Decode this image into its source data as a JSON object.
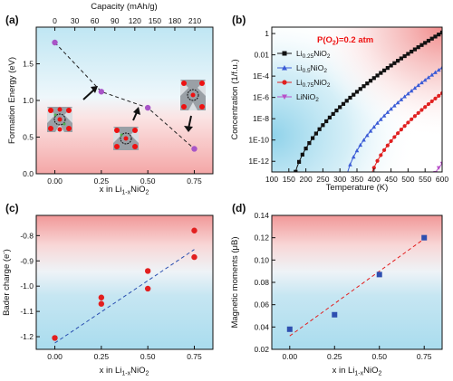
{
  "chart_data": [
    {
      "panel": "(a)",
      "type": "scatter",
      "xlabel": "x in Li1-xNiO2",
      "xlabel_parts": {
        "base": "x in Li",
        "sub1": "1-x",
        "mid": "NiO",
        "sub2": "2"
      },
      "ylabel": "Formation Energy (eV)",
      "x2label": "Capacity (mAh/g)",
      "xlim": [
        -0.1,
        0.85
      ],
      "ylim": [
        0.0,
        2.0
      ],
      "xticks": [
        0.0,
        0.25,
        0.5,
        0.75
      ],
      "xtick_labels": [
        "0.00",
        "0.25",
        "0.50",
        "0.75"
      ],
      "yticks": [
        0.0,
        0.5,
        1.0,
        1.5
      ],
      "ytick_labels": [
        "0.0",
        "0.5",
        "1.0",
        "1.5"
      ],
      "x2ticks": [
        0,
        30,
        60,
        90,
        120,
        150,
        180,
        210
      ],
      "x2tick_labels": [
        "0",
        "30",
        "60",
        "90",
        "120",
        "150",
        "180",
        "210"
      ],
      "x2_data_per_x": 279,
      "marker_color": "#a855c7",
      "line_style": "dashed",
      "x": [
        0.0,
        0.25,
        0.5,
        0.75
      ],
      "y": [
        1.79,
        1.12,
        0.9,
        0.34
      ],
      "background": "red bottom, blue top, white middle"
    },
    {
      "panel": "(b)",
      "type": "line",
      "xlabel": "Temperature (K)",
      "ylabel": "Concentration (1/f.u.)",
      "annotation": "P(O2)=0.2 atm",
      "annotation_parts": {
        "base": "P(O",
        "sub": "2",
        "rest": ")=0.2 atm"
      },
      "annotation_color": "#e11",
      "xlim": [
        100,
        600
      ],
      "ylim_log10": [
        -13,
        0.6
      ],
      "yscale": "log",
      "xticks": [
        100,
        150,
        200,
        250,
        300,
        350,
        400,
        450,
        500,
        550,
        600
      ],
      "xtick_labels": [
        "100",
        "150",
        "200",
        "250",
        "300",
        "350",
        "400",
        "450",
        "500",
        "550",
        "600"
      ],
      "yticks_log10": [
        -12,
        -10,
        -8,
        -6,
        -4,
        -2,
        0
      ],
      "ytick_labels": [
        "1E-12",
        "1E-10",
        "1E-8",
        "1E-6",
        "1E-4",
        "0.01",
        "1"
      ],
      "legend_position": "top-left",
      "series": [
        {
          "name": "Li0.25NiO2",
          "name_parts": {
            "base": "Li",
            "sub1": "0.25",
            "mid": "NiO",
            "sub2": "2"
          },
          "color": "#111111",
          "marker": "square",
          "T_onset": 165,
          "log10_at_600": 0.1,
          "curvature": 1.7
        },
        {
          "name": "Li0.5NiO2",
          "name_parts": {
            "base": "Li",
            "sub1": "0.5",
            "mid": "NiO",
            "sub2": "2"
          },
          "color": "#3a5bd6",
          "marker": "triangle",
          "T_onset": 318,
          "log10_at_600": -3.2,
          "curvature": 1.7
        },
        {
          "name": "Li0.75NiO2",
          "name_parts": {
            "base": "Li",
            "sub1": "0.75",
            "mid": "NiO",
            "sub2": "2"
          },
          "color": "#e02020",
          "marker": "circle",
          "T_onset": 388,
          "log10_at_600": -5.6,
          "curvature": 1.6
        },
        {
          "name": "LiNiO2",
          "name_parts": {
            "base": "LiNiO",
            "sub1": "",
            "mid": "",
            "sub2": "2"
          },
          "color": "#b84fc9",
          "marker": "triangle-down",
          "T_onset": 565,
          "log10_at_600": -12.2,
          "curvature": 1.3
        }
      ]
    },
    {
      "panel": "(c)",
      "type": "scatter",
      "xlabel": "x in Li1-xNiO2",
      "xlabel_parts": {
        "base": "x in Li",
        "sub1": "1-x",
        "mid": "NiO",
        "sub2": "2"
      },
      "ylabel": "Bader charge (e-)",
      "ylabel_parts": {
        "base": "Bader charge (e",
        "sup": "-",
        "rest": ")"
      },
      "xlim": [
        -0.1,
        0.85
      ],
      "ylim": [
        -1.25,
        -0.72
      ],
      "xticks": [
        0.0,
        0.25,
        0.5,
        0.75
      ],
      "xtick_labels": [
        "0.00",
        "0.25",
        "0.50",
        "0.75"
      ],
      "yticks": [
        -1.2,
        -1.1,
        -1.0,
        -0.9,
        -0.8
      ],
      "ytick_labels": [
        "-1.2",
        "-1.1",
        "-1.0",
        "-0.9",
        "-0.8"
      ],
      "marker_color": "#e21f1f",
      "fit_line": {
        "x": [
          0.0,
          0.75
        ],
        "y": [
          -1.225,
          -0.855
        ],
        "color": "#2a4fb0",
        "style": "dashed"
      },
      "x": [
        0.0,
        0.25,
        0.25,
        0.5,
        0.5,
        0.75,
        0.75
      ],
      "y": [
        -1.205,
        -1.045,
        -1.07,
        -0.94,
        -1.01,
        -0.78,
        -0.885
      ],
      "background": "red top, blue bottom"
    },
    {
      "panel": "(d)",
      "type": "scatter",
      "xlabel": "x in Li1-xNiO2",
      "xlabel_parts": {
        "base": "x in Li",
        "sub1": "1-x",
        "mid": "NiO",
        "sub2": "2"
      },
      "ylabel": "Magnetic moments (μB)",
      "xlim": [
        -0.1,
        0.85
      ],
      "ylim": [
        0.02,
        0.14
      ],
      "xticks": [
        0.0,
        0.25,
        0.5,
        0.75
      ],
      "xtick_labels": [
        "0.00",
        "0.25",
        "0.50",
        "0.75"
      ],
      "yticks": [
        0.02,
        0.04,
        0.06,
        0.08,
        0.1,
        0.12,
        0.14
      ],
      "ytick_labels": [
        "0.02",
        "0.04",
        "0.06",
        "0.08",
        "0.10",
        "0.12",
        "0.14"
      ],
      "marker_color": "#2e4fb0",
      "fit_line": {
        "x": [
          0.0,
          0.75
        ],
        "y": [
          0.032,
          0.119
        ],
        "color": "#e21f1f",
        "style": "dashed"
      },
      "x": [
        0.0,
        0.25,
        0.5,
        0.75
      ],
      "y": [
        0.038,
        0.051,
        0.087,
        0.12
      ],
      "background": "red top, blue bottom"
    }
  ]
}
